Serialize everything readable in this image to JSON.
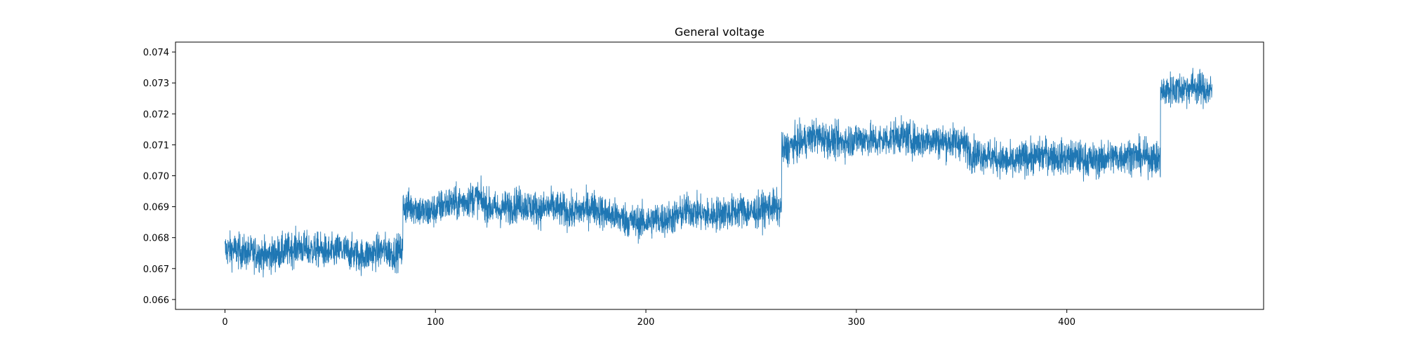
{
  "chart_data": {
    "type": "line",
    "title": "General voltage",
    "xlabel": "",
    "ylabel": "",
    "xlim": [
      -23.5,
      493.5
    ],
    "ylim": [
      0.06568,
      0.07432
    ],
    "x_ticks": [
      0,
      100,
      200,
      300,
      400
    ],
    "x_tick_labels": [
      "0",
      "100",
      "200",
      "300",
      "400"
    ],
    "y_ticks": [
      0.066,
      0.067,
      0.068,
      0.069,
      0.07,
      0.071,
      0.072,
      0.073,
      0.074
    ],
    "y_tick_labels": [
      "0.066",
      "0.067",
      "0.068",
      "0.069",
      "0.070",
      "0.071",
      "0.072",
      "0.073",
      "0.074"
    ],
    "grid": false,
    "legend": "none",
    "line_color": "#1f77b4",
    "series": [
      {
        "name": "",
        "x": [
          0,
          5,
          10,
          15,
          20,
          25,
          30,
          35,
          40,
          45,
          50,
          55,
          60,
          65,
          70,
          75,
          80,
          84.5,
          85,
          90,
          95,
          100,
          105,
          110,
          115,
          120,
          125,
          130,
          135,
          140,
          145,
          150,
          155,
          160,
          165,
          170,
          175,
          180,
          185,
          190,
          195,
          200,
          205,
          210,
          215,
          220,
          225,
          230,
          235,
          240,
          245,
          250,
          255,
          260,
          264.5,
          265,
          270,
          275,
          280,
          285,
          290,
          295,
          300,
          305,
          310,
          315,
          320,
          325,
          330,
          335,
          340,
          345,
          350,
          355,
          360,
          365,
          370,
          375,
          380,
          385,
          390,
          395,
          400,
          405,
          410,
          415,
          420,
          425,
          430,
          435,
          440,
          444.5,
          445,
          450,
          455,
          460,
          465,
          469
        ],
        "y": [
          0.0676,
          0.0676,
          0.0675,
          0.0675,
          0.0674,
          0.0675,
          0.0676,
          0.0677,
          0.0676,
          0.0676,
          0.0675,
          0.0676,
          0.0675,
          0.0674,
          0.0675,
          0.0676,
          0.0675,
          0.0676,
          0.069,
          0.069,
          0.0688,
          0.0689,
          0.0691,
          0.0691,
          0.0692,
          0.0693,
          0.069,
          0.0689,
          0.069,
          0.0691,
          0.069,
          0.0689,
          0.069,
          0.0689,
          0.0688,
          0.0689,
          0.069,
          0.0688,
          0.0687,
          0.0686,
          0.0685,
          0.0685,
          0.0686,
          0.0686,
          0.0687,
          0.0689,
          0.0688,
          0.0687,
          0.0688,
          0.0688,
          0.0689,
          0.0688,
          0.0689,
          0.069,
          0.0689,
          0.0708,
          0.071,
          0.0711,
          0.0713,
          0.0712,
          0.0711,
          0.0711,
          0.0712,
          0.0712,
          0.0711,
          0.0712,
          0.0713,
          0.0712,
          0.0711,
          0.0712,
          0.0711,
          0.0711,
          0.0711,
          0.0707,
          0.0707,
          0.0706,
          0.0705,
          0.0704,
          0.0706,
          0.0706,
          0.0707,
          0.0706,
          0.0706,
          0.0706,
          0.0705,
          0.0705,
          0.0706,
          0.0706,
          0.0707,
          0.0706,
          0.0706,
          0.0705,
          0.0727,
          0.0728,
          0.0728,
          0.0729,
          0.0728,
          0.0727
        ],
        "noise_band": 0.00065
      }
    ]
  }
}
